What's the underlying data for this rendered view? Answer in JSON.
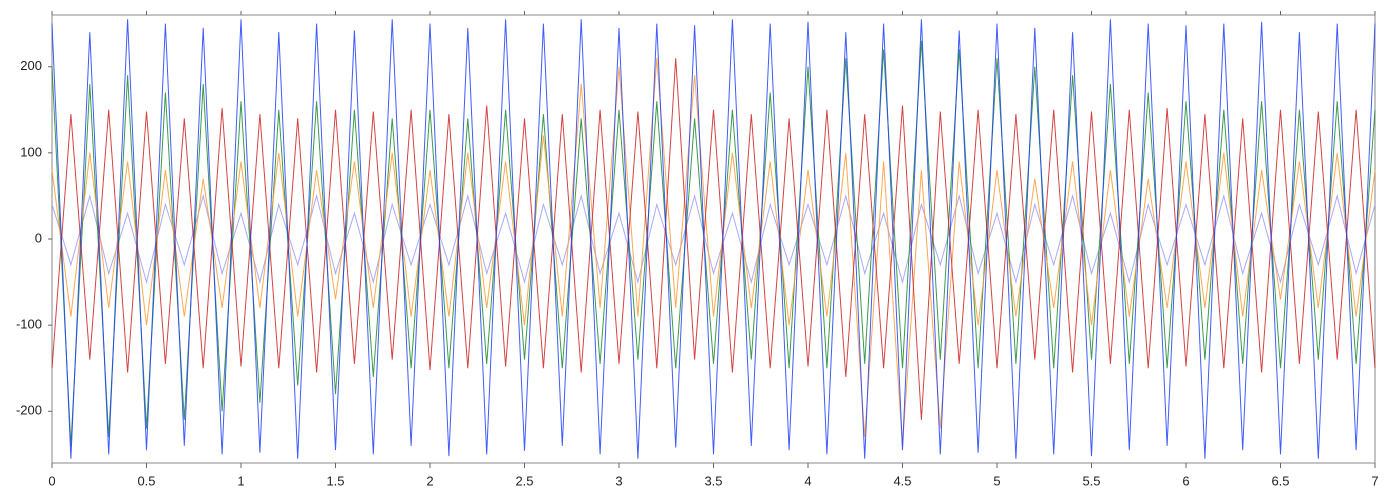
{
  "chart_data": {
    "type": "line",
    "x": [
      0,
      0.1,
      0.2,
      0.3,
      0.4,
      0.5,
      0.6,
      0.7,
      0.8,
      0.9,
      1,
      1.1,
      1.2,
      1.3,
      1.4,
      1.5,
      1.6,
      1.7,
      1.8,
      1.9,
      2,
      2.1,
      2.2,
      2.3,
      2.4,
      2.5,
      2.6,
      2.7,
      2.8,
      2.9,
      3,
      3.1,
      3.2,
      3.3,
      3.4,
      3.5,
      3.6,
      3.7,
      3.8,
      3.9,
      4,
      4.1,
      4.2,
      4.3,
      4.4,
      4.5,
      4.6,
      4.7,
      4.8,
      4.9,
      5,
      5.1,
      5.2,
      5.3,
      5.4,
      5.5,
      5.6,
      5.7,
      5.8,
      5.9,
      6,
      6.1,
      6.2,
      6.3,
      6.4,
      6.5,
      6.6,
      6.7,
      6.8,
      6.9,
      7
    ],
    "series": [
      {
        "color": "#9a9aff",
        "values": [
          40,
          -30,
          50,
          -40,
          30,
          -50,
          40,
          -30,
          50,
          -40,
          30,
          -50,
          40,
          -30,
          50,
          -40,
          30,
          -50,
          40,
          -30,
          40,
          -30,
          50,
          -40,
          30,
          -50,
          40,
          -30,
          50,
          -40,
          30,
          -50,
          40,
          -30,
          50,
          -40,
          30,
          -50,
          40,
          -30,
          40,
          -30,
          50,
          -40,
          30,
          -50,
          40,
          -30,
          50,
          -40,
          30,
          -50,
          40,
          -30,
          50,
          -40,
          30,
          -50,
          40,
          -30,
          40,
          -30,
          50,
          -40,
          30,
          -50,
          40,
          -30,
          50,
          -40,
          40
        ]
      },
      {
        "color": "#1a8a2a",
        "values": [
          200,
          -240,
          180,
          -230,
          190,
          -220,
          170,
          -210,
          180,
          -200,
          160,
          -190,
          150,
          -170,
          160,
          -180,
          150,
          -160,
          140,
          -150,
          150,
          -150,
          140,
          -145,
          150,
          -140,
          145,
          -150,
          140,
          -145,
          150,
          -140,
          160,
          -150,
          140,
          -145,
          150,
          -140,
          170,
          -150,
          200,
          -150,
          210,
          -145,
          220,
          -150,
          230,
          -140,
          220,
          -150,
          210,
          -145,
          200,
          -150,
          190,
          -140,
          180,
          -145,
          170,
          -150,
          160,
          -140,
          150,
          -145,
          160,
          -150,
          150,
          -140,
          160,
          -145,
          150
        ]
      },
      {
        "color": "#ff9933",
        "values": [
          80,
          -90,
          100,
          -80,
          90,
          -100,
          80,
          -90,
          70,
          -80,
          90,
          -80,
          100,
          -90,
          80,
          -70,
          90,
          -80,
          100,
          -90,
          80,
          -90,
          100,
          -80,
          90,
          -100,
          120,
          -90,
          180,
          -80,
          200,
          -90,
          210,
          -80,
          190,
          -90,
          100,
          -80,
          90,
          -100,
          80,
          -90,
          100,
          -230,
          90,
          -240,
          80,
          -220,
          90,
          -100,
          80,
          -90,
          70,
          -80,
          90,
          -100,
          80,
          -90,
          70,
          -80,
          90,
          -80,
          100,
          -90,
          80,
          -70,
          90,
          -80,
          100,
          -90,
          80
        ]
      },
      {
        "color": "#cc2222",
        "values": [
          -150,
          145,
          -140,
          150,
          -155,
          148,
          -145,
          140,
          -150,
          152,
          -148,
          145,
          -150,
          140,
          -155,
          150,
          -145,
          148,
          -140,
          150,
          -152,
          145,
          -150,
          155,
          -148,
          140,
          -150,
          145,
          -155,
          150,
          -145,
          148,
          -150,
          210,
          -140,
          150,
          -155,
          145,
          -150,
          140,
          -148,
          150,
          -160,
          145,
          -150,
          155,
          -210,
          148,
          -145,
          150,
          -150,
          145,
          -140,
          150,
          -155,
          148,
          -145,
          150,
          -150,
          152,
          -148,
          145,
          -150,
          140,
          -155,
          150,
          -145,
          148,
          -140,
          150,
          -150
        ]
      },
      {
        "color": "#1f3fff",
        "values": [
          250,
          -255,
          240,
          -250,
          255,
          -245,
          250,
          -240,
          245,
          -250,
          255,
          -248,
          240,
          -255,
          250,
          -245,
          242,
          -250,
          255,
          -240,
          250,
          -252,
          245,
          -250,
          255,
          -246,
          250,
          -240,
          255,
          -250,
          245,
          -255,
          250,
          -242,
          248,
          -250,
          255,
          -240,
          250,
          -245,
          252,
          -250,
          240,
          -255,
          250,
          -245,
          255,
          -250,
          242,
          -248,
          250,
          -255,
          245,
          -250,
          240,
          -252,
          255,
          -245,
          250,
          -240,
          248,
          -255,
          250,
          -245,
          252,
          -250,
          240,
          -255,
          250,
          -245,
          250
        ]
      }
    ],
    "xlim": [
      0,
      7
    ],
    "xticks": [
      0,
      0.5,
      1,
      1.5,
      2,
      2.5,
      3,
      3.5,
      4,
      4.5,
      5,
      5.5,
      6,
      6.5,
      7
    ],
    "ylim": [
      -260,
      260
    ],
    "yticks": [
      -200,
      -100,
      0,
      100,
      200
    ]
  }
}
